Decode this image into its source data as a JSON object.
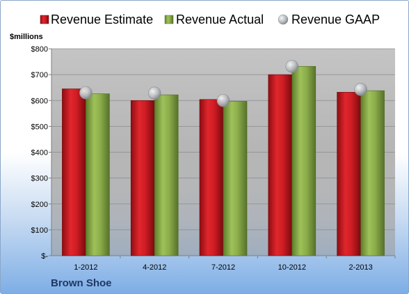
{
  "company": "Brown Shoe",
  "colors": {
    "estimate": "#c8161d",
    "actual": "#8fae4e",
    "gaap": "#b4b8bc",
    "plot_background": "#bfbfbf"
  },
  "chart_data": {
    "type": "bar",
    "ylabel": "$millions",
    "ylim": [
      0,
      800
    ],
    "yticks": [
      0,
      100,
      200,
      300,
      400,
      500,
      600,
      700,
      800
    ],
    "ytick_labels": [
      "$-",
      "$100",
      "$200",
      "$300",
      "$400",
      "$500",
      "$600",
      "$700",
      "$800"
    ],
    "categories": [
      "1-2012",
      "4-2012",
      "7-2012",
      "10-2012",
      "2-2013"
    ],
    "legend_position": "top",
    "grid": true,
    "series": [
      {
        "name": "Revenue Estimate",
        "kind": "bar",
        "color": "#c8161d",
        "values": [
          645,
          600,
          604,
          700,
          632
        ]
      },
      {
        "name": "Revenue Actual",
        "kind": "bar",
        "color": "#8fae4e",
        "values": [
          626,
          622,
          597,
          732,
          638
        ]
      },
      {
        "name": "Revenue GAAP",
        "kind": "marker",
        "color": "#b4b8bc",
        "values": [
          630,
          628,
          600,
          732,
          643
        ]
      }
    ]
  }
}
